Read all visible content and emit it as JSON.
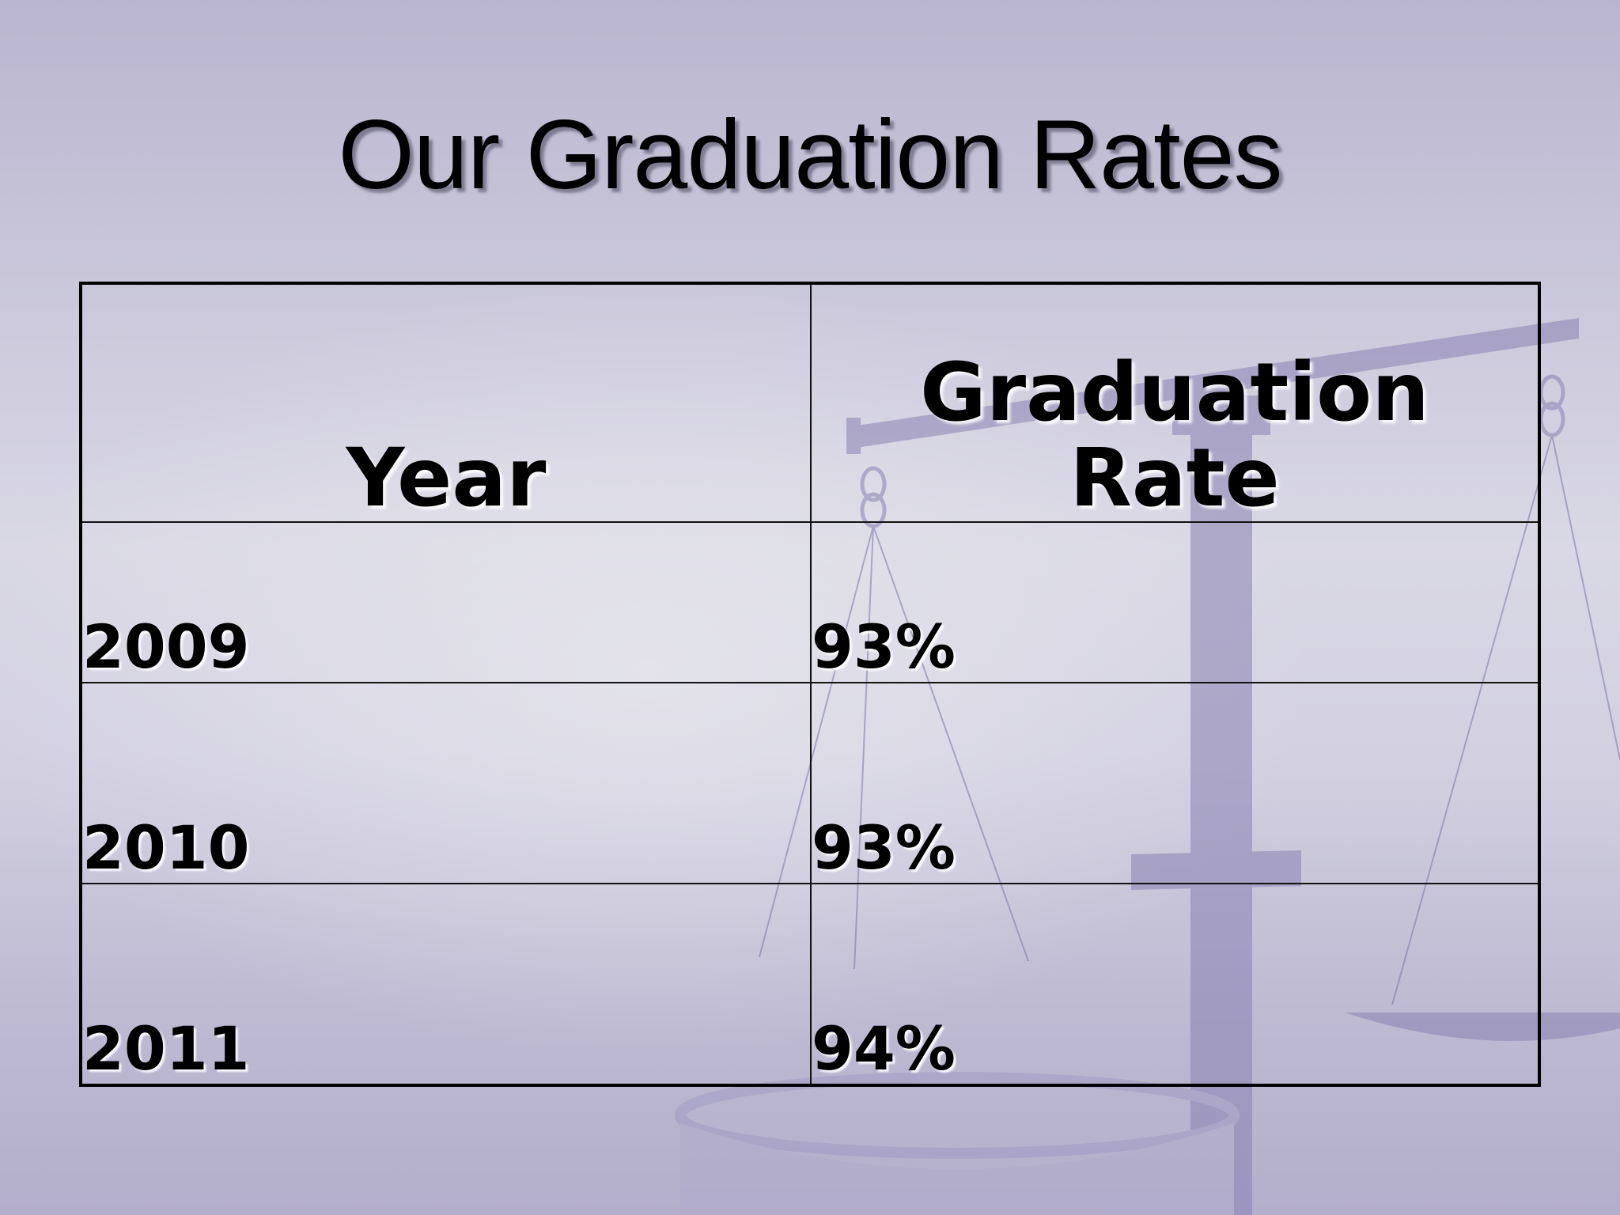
{
  "slide": {
    "title": "Our Graduation Rates"
  },
  "table": {
    "headers": {
      "year": "Year",
      "rate_line1": "Graduation",
      "rate_line2": "Rate"
    },
    "rows": [
      {
        "year": "2009",
        "rate": "93%"
      },
      {
        "year": "2010",
        "rate": "93%"
      },
      {
        "year": "2011",
        "rate": "94%"
      }
    ]
  },
  "colors": {
    "background": "#c9c6da",
    "watermark": "#8c84b6",
    "text": "#000000"
  },
  "decor": {
    "background_image": "scales-of-justice-icon"
  }
}
